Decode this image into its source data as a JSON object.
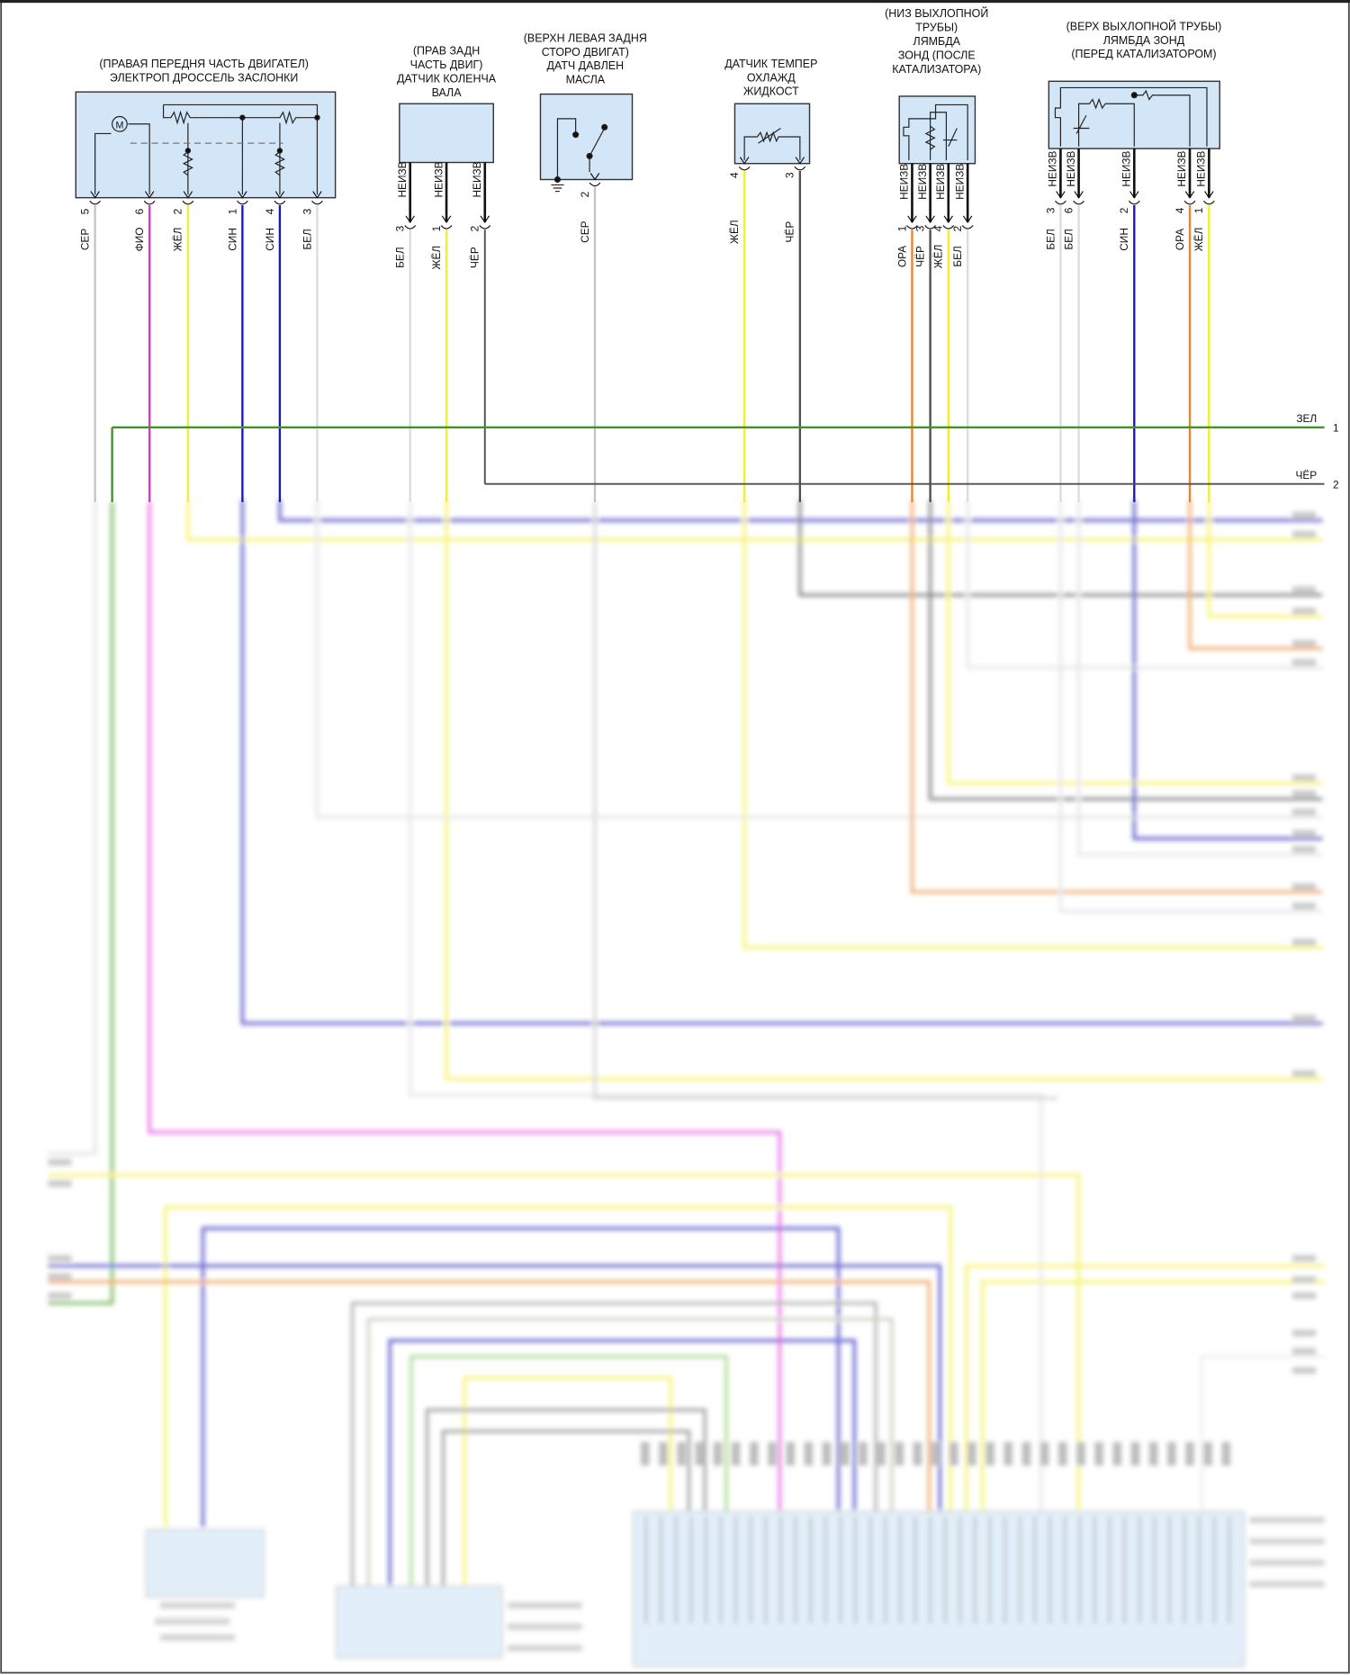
{
  "wire_colors": {
    "СЕР": "#c4c4c4",
    "ФИО": "#e030d8",
    "ЖЁЛ": "#f2ee30",
    "СИН": "#1a1ab8",
    "БЕЛ": "#dcdcdc",
    "ЧЁР": "#505050",
    "ОРА": "#e8862a",
    "ЗЕЛ": "#3c9a18"
  },
  "box_fill": "#d3e6f7",
  "lead_label": "НЕИЗВ",
  "components": [
    {
      "id": "throttle-actuator",
      "title": [
        "(ПРАВАЯ ПЕРЕДНЯ ЧАСТЬ ДВИГАТЕЛ)",
        "ЭЛЕКТРОП ДРОССЕЛЬ ЗАСЛОНКИ"
      ],
      "motor_label": "M",
      "pins": [
        {
          "pin": "5",
          "color": "СЕР"
        },
        {
          "pin": "6",
          "color": "ФИО"
        },
        {
          "pin": "2",
          "color": "ЖЁЛ"
        },
        {
          "pin": "1",
          "color": "СИН"
        },
        {
          "pin": "4",
          "color": "СИН"
        },
        {
          "pin": "3",
          "color": "БЕЛ"
        }
      ]
    },
    {
      "id": "crankshaft-sensor",
      "title": [
        "(ПРАВ ЗАДН",
        "ЧАСТЬ ДВИГ)",
        "ДАТЧИК КОЛЕНЧА",
        "ВАЛА"
      ],
      "pins": [
        {
          "pin": "3",
          "color": "БЕЛ",
          "lead": true
        },
        {
          "pin": "1",
          "color": "ЖЁЛ",
          "lead": true
        },
        {
          "pin": "2",
          "color": "ЧЁР",
          "lead": true
        }
      ]
    },
    {
      "id": "oil-pressure-sensor",
      "title": [
        "(ВЕРХН ЛЕВАЯ ЗАДНЯ",
        "СТОРО ДВИГАТ)",
        "ДАТЧ ДАВЛЕН",
        "МАСЛА"
      ],
      "pins": [
        {
          "pin": "2",
          "color": "СЕР"
        }
      ]
    },
    {
      "id": "coolant-temp-sensor",
      "title": [
        "ДАТЧИК ТЕМПЕР",
        "ОХЛАЖД",
        "ЖИДКОСТ"
      ],
      "pins": [
        {
          "pin": "4",
          "color": "ЖЁЛ"
        },
        {
          "pin": "3",
          "color": "ЧЁР"
        }
      ]
    },
    {
      "id": "lambda-after-catalyst",
      "title": [
        "(НИЗ ВЫХЛОПНОЙ",
        "ТРУБЫ)",
        "ЛЯМБДА",
        "ЗОНД (ПОСЛЕ",
        "КАТАЛИЗАТОРА)"
      ],
      "pins": [
        {
          "pin": "1",
          "color": "ОРА",
          "lead": true
        },
        {
          "pin": "3",
          "color": "ЧЁР",
          "lead": true
        },
        {
          "pin": "4",
          "color": "ЖЁЛ",
          "lead": true
        },
        {
          "pin": "2",
          "color": "БЕЛ",
          "lead": true
        }
      ]
    },
    {
      "id": "lambda-before-catalyst",
      "title": [
        "(ВЕРХ ВЫХЛОПНОЙ ТРУБЫ)",
        "ЛЯМБДА ЗОНД",
        "(ПЕРЕД КАТАЛИЗАТОРОМ)"
      ],
      "pins": [
        {
          "pin": "3",
          "color": "БЕЛ",
          "lead": true
        },
        {
          "pin": "6",
          "color": "БЕЛ",
          "lead": true
        },
        {
          "pin": "2",
          "color": "СИН",
          "lead": true
        },
        {
          "pin": "4",
          "color": "ОРА",
          "lead": true
        },
        {
          "pin": "1",
          "color": "ЖЁЛ",
          "lead": true
        }
      ]
    }
  ],
  "buses": [
    {
      "color": "ЗЕЛ",
      "num": "1"
    },
    {
      "color": "ЧЁР",
      "num": "2"
    }
  ]
}
